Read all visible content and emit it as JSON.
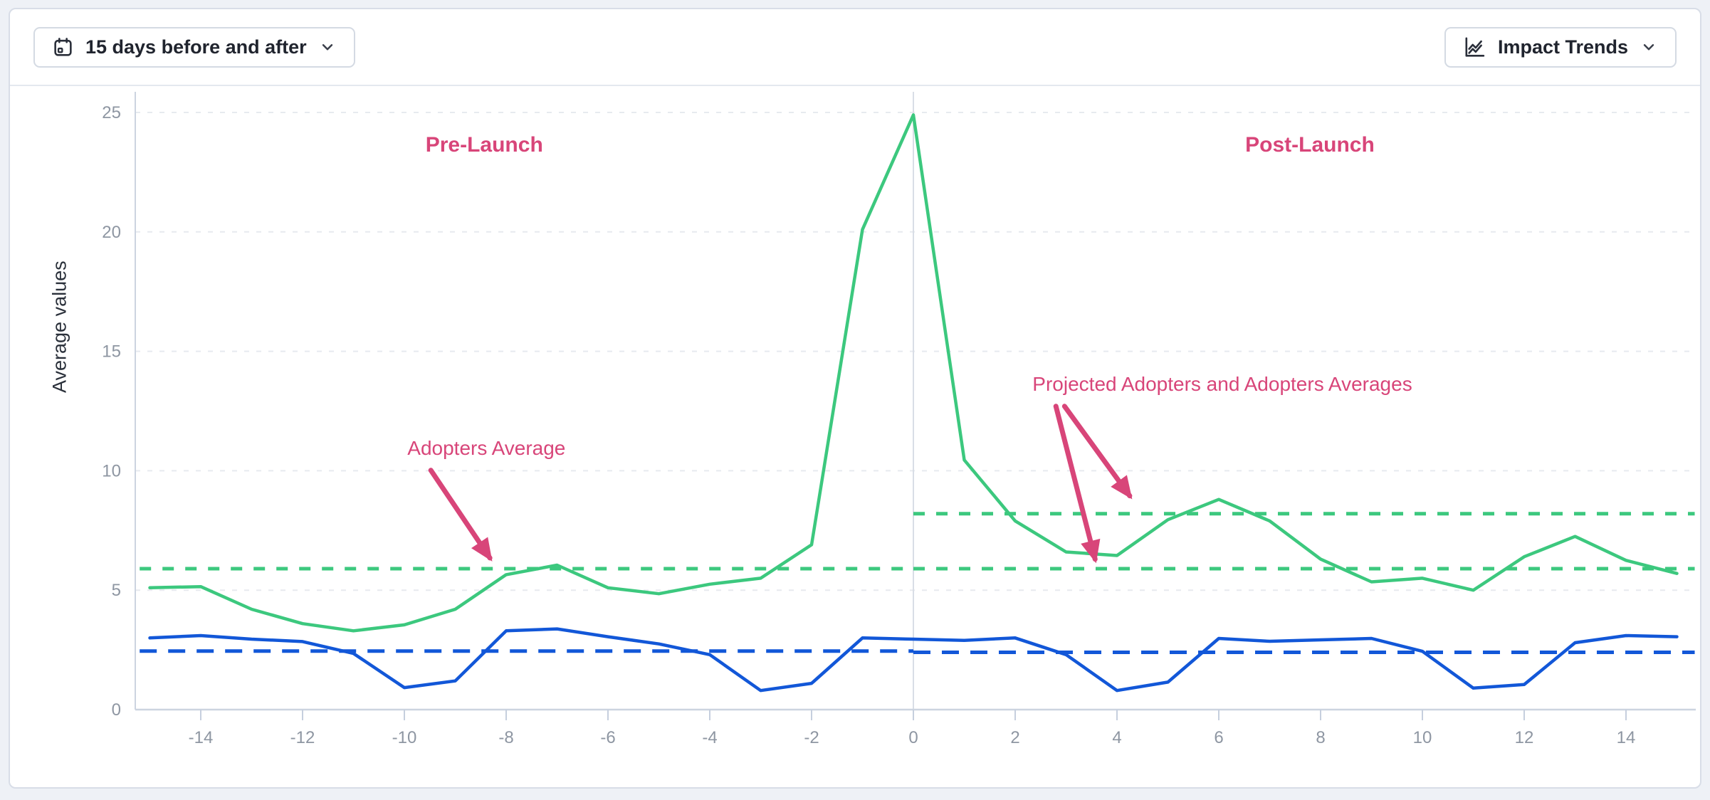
{
  "header": {
    "date_range_button": {
      "label": "15 days before and after",
      "icon": "calendar-icon",
      "chevron": "chevron-down-icon"
    },
    "trends_button": {
      "label": "Impact Trends",
      "icon": "line-chart-icon",
      "chevron": "chevron-down-icon"
    }
  },
  "colors": {
    "adopters_green": "#3cc87e",
    "projected_blue": "#1257d8",
    "annotation_pink": "#d84579",
    "grid": "#e7eaef",
    "axis": "#ccd4e0",
    "tick": "#c6cfde",
    "tick_text": "#8e96a2",
    "launch_line": "#d9dee6"
  },
  "chart_data": {
    "type": "line",
    "title": "",
    "xlabel": "",
    "ylabel": "Average values",
    "xlim": [
      -15.3,
      15.35
    ],
    "ylim": [
      0,
      26.1
    ],
    "grid": true,
    "legend": "none",
    "x_ticks": [
      -14,
      -12,
      -10,
      -8,
      -6,
      -4,
      -2,
      0,
      2,
      4,
      6,
      8,
      10,
      12,
      14
    ],
    "y_ticks": [
      0,
      5,
      10,
      15,
      20,
      25
    ],
    "x": [
      -15,
      -14,
      -13,
      -12,
      -11,
      -10,
      -9,
      -8,
      -7,
      -6,
      -5,
      -4,
      -3,
      -2,
      -1,
      0,
      1,
      2,
      3,
      4,
      5,
      6,
      7,
      8,
      9,
      10,
      11,
      12,
      13,
      14,
      15
    ],
    "series": [
      {
        "name": "Adopters",
        "color": "#3cc87e",
        "style": "solid",
        "values": [
          5.1,
          5.15,
          4.2,
          3.6,
          3.3,
          3.55,
          4.2,
          5.65,
          6.05,
          5.1,
          4.85,
          5.25,
          5.5,
          6.9,
          20.1,
          24.9,
          10.45,
          7.9,
          6.6,
          6.45,
          7.95,
          8.8,
          7.9,
          6.3,
          5.35,
          5.5,
          5.0,
          6.4,
          7.25,
          6.25,
          5.7
        ]
      },
      {
        "name": "Projected Adopters",
        "color": "#1257d8",
        "style": "solid",
        "values": [
          3.0,
          3.1,
          2.95,
          2.85,
          2.35,
          0.92,
          1.2,
          3.3,
          3.38,
          3.05,
          2.75,
          2.3,
          0.8,
          1.1,
          3.0,
          2.95,
          2.9,
          3.0,
          2.3,
          0.8,
          1.15,
          2.98,
          2.86,
          2.92,
          2.98,
          2.44,
          0.9,
          1.05,
          2.8,
          3.1,
          3.05
        ]
      }
    ],
    "average_lines": [
      {
        "name": "adopters-average-pre",
        "color": "#3cc87e",
        "value": 5.9,
        "x_range": [
          -15.2,
          0
        ],
        "dash": "16 16"
      },
      {
        "name": "adopters-average-post-lower",
        "color": "#3cc87e",
        "value": 5.9,
        "x_range": [
          0,
          15.35
        ],
        "dash": "16 16"
      },
      {
        "name": "adopters-average-post-upper",
        "color": "#3cc87e",
        "value": 8.2,
        "x_range": [
          0,
          15.35
        ],
        "dash": "16 16"
      },
      {
        "name": "projected-average-pre",
        "color": "#1257d8",
        "value": 2.45,
        "x_range": [
          -15.2,
          0
        ],
        "dash": "24 16"
      },
      {
        "name": "projected-average-post",
        "color": "#1257d8",
        "value": 2.4,
        "x_range": [
          0,
          15.35
        ],
        "dash": "24 16"
      }
    ],
    "launch_line_x": 0,
    "annotations": [
      {
        "name": "pre-launch-label",
        "text": "Pre-Launch",
        "x": -8.43,
        "y": 23.36,
        "anchor": "middle",
        "weight": "bold",
        "size": 30
      },
      {
        "name": "post-launch-label",
        "text": "Post-Launch",
        "x": 7.79,
        "y": 23.36,
        "anchor": "middle",
        "weight": "bold",
        "size": 30
      },
      {
        "name": "adopters-average-label",
        "text": "Adopters Average",
        "x": -9.94,
        "y": 10.67,
        "anchor": "start",
        "weight": "normal",
        "size": 28
      },
      {
        "name": "projected-adopters-label",
        "text": "Projected Adopters and Adopters Averages",
        "x": 2.34,
        "y": 13.35,
        "anchor": "start",
        "weight": "normal",
        "size": 28
      }
    ],
    "arrows": [
      {
        "name": "adopters-average-arrow",
        "x1": -9.48,
        "y1": 10.02,
        "x2": -8.32,
        "y2": 6.35
      },
      {
        "name": "projected-averages-arrow-long",
        "x1": 2.8,
        "y1": 12.7,
        "x2": 3.57,
        "y2": 6.3
      },
      {
        "name": "projected-averages-arrow-short",
        "x1": 2.97,
        "y1": 12.7,
        "x2": 4.25,
        "y2": 8.95
      }
    ]
  }
}
